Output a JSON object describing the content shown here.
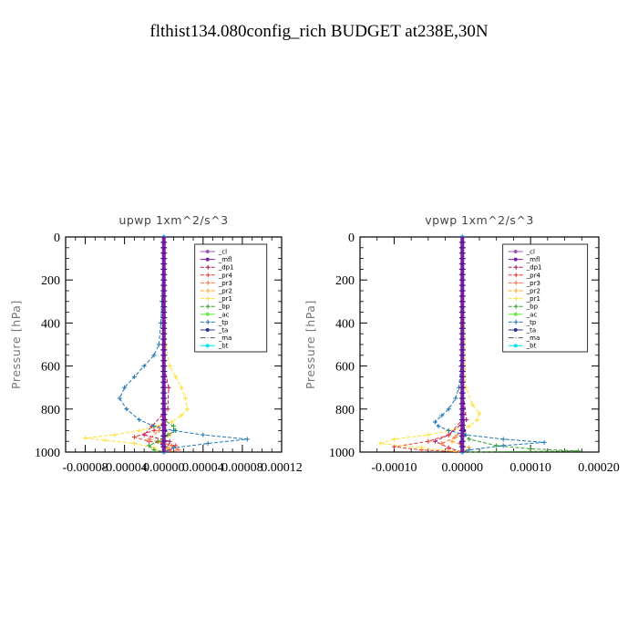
{
  "title": "flthist134.080config_rich  BUDGET at238E,30N",
  "chart_data": [
    {
      "type": "line",
      "title": "upwp   1xm^2/s^3",
      "ylabel": "Pressure [hPa]",
      "xlabel": "",
      "xlim": [
        -0.0001,
        0.00012
      ],
      "ylim": [
        1000,
        0
      ],
      "xticks": [
        -8e-05,
        -4e-05,
        0.0,
        4e-05,
        8e-05,
        0.00012
      ],
      "xtick_labels": [
        "-0.00008",
        "-0.00004",
        "0.00000",
        "0.00004",
        "0.00008",
        "0.00012"
      ],
      "yticks": [
        0,
        200,
        400,
        600,
        800,
        1000
      ],
      "ytick_labels": [
        "0",
        "200",
        "400",
        "600",
        "800",
        "1000"
      ],
      "legend_position": "top-right",
      "series": [
        {
          "name": "_cl",
          "color": "#9b59b6",
          "marker": "dot",
          "y": [
            0,
            400,
            800,
            1000
          ],
          "x": [
            0,
            0,
            0,
            0
          ]
        },
        {
          "name": "_mfl",
          "color": "#7b1fa2",
          "marker": "dot",
          "y": [
            0,
            600,
            900,
            960,
            1000
          ],
          "x": [
            0,
            0,
            2e-06,
            -2e-06,
            0
          ]
        },
        {
          "name": "_dp1",
          "color": "#b2185c",
          "marker": "star",
          "y": [
            0,
            600,
            700,
            800,
            880,
            920,
            950,
            980,
            1000
          ],
          "x": [
            0,
            0,
            5e-06,
            4e-06,
            -1.2e-05,
            -2e-05,
            6e-06,
            4e-06,
            0
          ]
        },
        {
          "name": "_pr4",
          "color": "#e53935",
          "marker": "star",
          "y": [
            0,
            700,
            850,
            900,
            930,
            950,
            970,
            990,
            1000
          ],
          "x": [
            0,
            0,
            2e-06,
            -1e-05,
            -3e-05,
            -1.5e-05,
            1.2e-05,
            6e-06,
            0
          ]
        },
        {
          "name": "_pr3",
          "color": "#ff7043",
          "marker": "star",
          "y": [
            0,
            850,
            900,
            940,
            970,
            990,
            1000
          ],
          "x": [
            0,
            0,
            -5e-06,
            -1.5e-05,
            8e-06,
            1.5e-05,
            0
          ]
        },
        {
          "name": "_pr2",
          "color": "#ffa726",
          "marker": "star",
          "y": [
            0,
            880,
            920,
            950,
            980,
            1000
          ],
          "x": [
            0,
            0,
            6e-06,
            -6e-06,
            4e-06,
            0
          ]
        },
        {
          "name": "_pr1",
          "color": "#ffe135",
          "marker": "star",
          "y": [
            0,
            500,
            600,
            650,
            700,
            750,
            800,
            830,
            860,
            880,
            900,
            920,
            935,
            945,
            960,
            980,
            1000
          ],
          "x": [
            0,
            2e-06,
            6e-06,
            1.2e-05,
            1.8e-05,
            2.2e-05,
            2.4e-05,
            1.8e-05,
            8e-06,
            -8e-06,
            -2.5e-05,
            -5e-05,
            -8e-05,
            -6e-05,
            -3e-05,
            -1e-05,
            0
          ]
        },
        {
          "name": "_bp",
          "color": "#33a02c",
          "marker": "star",
          "y": [
            0,
            850,
            880,
            900,
            920,
            950,
            970,
            990,
            1000
          ],
          "x": [
            0,
            0,
            1e-05,
            1.2e-05,
            4e-06,
            -6e-06,
            -1.5e-05,
            -1e-05,
            0
          ]
        },
        {
          "name": "_ac",
          "color": "#66ee44",
          "marker": "dot",
          "y": [
            0,
            1000
          ],
          "x": [
            0,
            0
          ]
        },
        {
          "name": "_tp",
          "color": "#1f77b4",
          "marker": "star",
          "y": [
            0,
            300,
            400,
            500,
            550,
            600,
            650,
            700,
            750,
            800,
            850,
            880,
            900,
            920,
            940,
            960,
            980,
            1000
          ],
          "x": [
            0,
            -2e-06,
            -3e-06,
            -5e-06,
            -1e-05,
            -2e-05,
            -3e-05,
            -4e-05,
            -4.5e-05,
            -3.8e-05,
            -2.5e-05,
            -1e-05,
            1e-05,
            4e-05,
            8.5e-05,
            4.5e-05,
            1e-05,
            0
          ]
        },
        {
          "name": "_ta",
          "color": "#283593",
          "marker": "dot",
          "y": [
            0,
            1000
          ],
          "x": [
            0,
            0
          ]
        },
        {
          "name": "_ma",
          "color": "#555555",
          "marker": "none",
          "y": [
            0,
            1000
          ],
          "x": [
            0,
            0
          ]
        },
        {
          "name": "_bt",
          "color": "#00e5ee",
          "marker": "dot",
          "y": [
            0,
            1000
          ],
          "x": [
            0,
            0
          ]
        }
      ]
    },
    {
      "type": "line",
      "title": "vpwp   1xm^2/s^3",
      "ylabel": "Pressure [hPa]",
      "xlabel": "",
      "xlim": [
        -0.00015,
        0.0002
      ],
      "ylim": [
        1000,
        0
      ],
      "xticks": [
        -0.0001,
        0.0,
        0.0001,
        0.0002
      ],
      "xtick_labels": [
        "-0.00010",
        "0.00000",
        "0.00010",
        "0.00020"
      ],
      "yticks": [
        0,
        200,
        400,
        600,
        800,
        1000
      ],
      "ytick_labels": [
        "0",
        "200",
        "400",
        "600",
        "800",
        "1000"
      ],
      "legend_position": "top-right",
      "series": [
        {
          "name": "_cl",
          "color": "#9b59b6",
          "marker": "dot",
          "y": [
            0,
            400,
            800,
            1000
          ],
          "x": [
            0,
            0,
            0,
            0
          ]
        },
        {
          "name": "_mfl",
          "color": "#7b1fa2",
          "marker": "dot",
          "y": [
            0,
            600,
            900,
            960,
            1000
          ],
          "x": [
            0,
            0,
            3e-06,
            -3e-06,
            0
          ]
        },
        {
          "name": "_dp1",
          "color": "#b2185c",
          "marker": "star",
          "y": [
            0,
            700,
            850,
            920,
            950,
            980,
            1000
          ],
          "x": [
            0,
            0,
            6e-06,
            -2e-05,
            -4e-05,
            -2e-05,
            0
          ]
        },
        {
          "name": "_pr4",
          "color": "#e53935",
          "marker": "star",
          "y": [
            0,
            850,
            920,
            950,
            975,
            990,
            1000
          ],
          "x": [
            0,
            0,
            -2e-05,
            -5e-05,
            -0.0001,
            -6e-05,
            0
          ]
        },
        {
          "name": "_pr3",
          "color": "#ff7043",
          "marker": "star",
          "y": [
            0,
            880,
            930,
            960,
            985,
            1000
          ],
          "x": [
            0,
            0,
            -1e-05,
            -3e-05,
            -2e-05,
            0
          ]
        },
        {
          "name": "_pr2",
          "color": "#ffa726",
          "marker": "star",
          "y": [
            0,
            900,
            950,
            980,
            1000
          ],
          "x": [
            0,
            0,
            -1.5e-05,
            1e-05,
            0
          ]
        },
        {
          "name": "_pr1",
          "color": "#ffe135",
          "marker": "star",
          "y": [
            0,
            700,
            780,
            820,
            850,
            880,
            900,
            920,
            940,
            960,
            980,
            1000
          ],
          "x": [
            0,
            5e-06,
            1.5e-05,
            2.5e-05,
            2.2e-05,
            1e-05,
            -2e-05,
            -5e-05,
            -0.0001,
            -0.00012,
            -6e-05,
            0
          ]
        },
        {
          "name": "_bp",
          "color": "#33a02c",
          "marker": "star",
          "y": [
            0,
            900,
            940,
            970,
            985,
            995,
            1000
          ],
          "x": [
            0,
            0,
            1e-05,
            5e-05,
            0.0001,
            0.00017,
            0
          ]
        },
        {
          "name": "_ac",
          "color": "#66ee44",
          "marker": "dot",
          "y": [
            0,
            1000
          ],
          "x": [
            0,
            0
          ]
        },
        {
          "name": "_tp",
          "color": "#1f77b4",
          "marker": "star",
          "y": [
            0,
            600,
            700,
            750,
            800,
            830,
            860,
            880,
            900,
            920,
            940,
            955,
            970,
            990,
            1000
          ],
          "x": [
            0,
            -2e-06,
            -5e-06,
            -1e-05,
            -2e-05,
            -3e-05,
            -4e-05,
            -3.5e-05,
            -2e-05,
            5e-06,
            6e-05,
            0.00012,
            6e-05,
            1e-05,
            0
          ]
        },
        {
          "name": "_ta",
          "color": "#283593",
          "marker": "dot",
          "y": [
            0,
            1000
          ],
          "x": [
            0,
            0
          ]
        },
        {
          "name": "_ma",
          "color": "#555555",
          "marker": "none",
          "y": [
            0,
            1000
          ],
          "x": [
            0,
            0
          ]
        },
        {
          "name": "_bt",
          "color": "#00e5ee",
          "marker": "dot",
          "y": [
            0,
            1000
          ],
          "x": [
            0,
            0
          ]
        }
      ]
    }
  ]
}
